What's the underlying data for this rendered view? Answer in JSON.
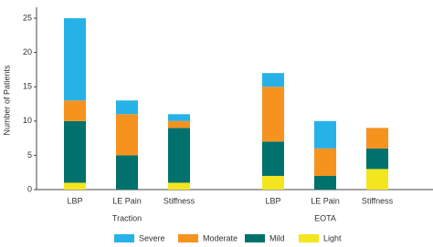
{
  "chart_data": {
    "type": "stacked-bar",
    "y_label": "Number of Patients",
    "groups": [
      "Traction",
      "EOTA"
    ],
    "categories": [
      "LBP",
      "LE Pain",
      "Stiffness",
      "LBP",
      "LE Pain",
      "Stiffness"
    ],
    "series": [
      {
        "name": "Light",
        "color": "#f3e61f",
        "values": [
          1,
          0,
          1,
          2,
          0,
          3
        ]
      },
      {
        "name": "Mild",
        "color": "#00716c",
        "values": [
          9,
          5,
          8,
          5,
          2,
          3
        ]
      },
      {
        "name": "Moderate",
        "color": "#f6921e",
        "values": [
          3,
          6,
          1,
          8,
          4,
          3
        ]
      },
      {
        "name": "Severe",
        "color": "#27b2e7",
        "values": [
          12,
          2,
          1,
          2,
          4,
          0
        ]
      }
    ],
    "ylim": [
      0,
      25
    ],
    "yticks": [
      0,
      5,
      10,
      15,
      20,
      25
    ]
  }
}
